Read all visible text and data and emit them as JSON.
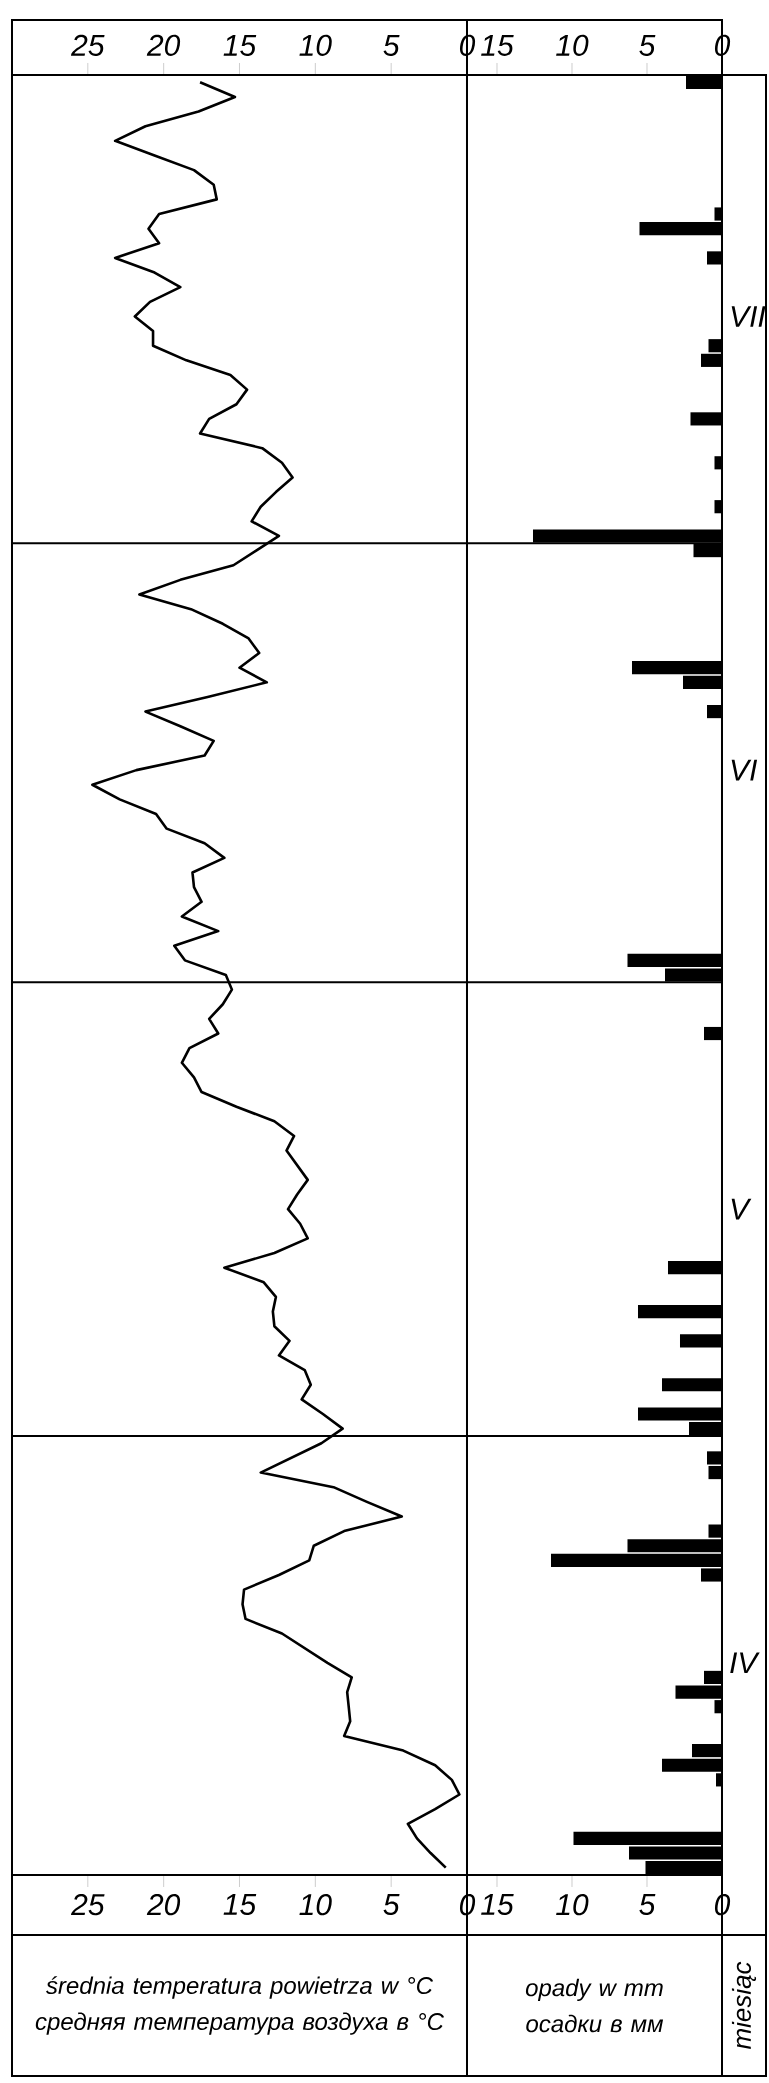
{
  "chart_data": [
    {
      "type": "line",
      "orientation": "horizontal",
      "color": "#000000",
      "categories": [
        null,
        null,
        null,
        null,
        null,
        null,
        null,
        null,
        null,
        null,
        null,
        null,
        null,
        null,
        null,
        null,
        null,
        null,
        null,
        null,
        null,
        null,
        null,
        null,
        null,
        null,
        null,
        null,
        null,
        null,
        null,
        null,
        null,
        null,
        null,
        null,
        null,
        null,
        null,
        null,
        null,
        null,
        null,
        null,
        null,
        null,
        null,
        null,
        null,
        null,
        null,
        null,
        null,
        null,
        null,
        null,
        null,
        null,
        null,
        null,
        null,
        null,
        null,
        null,
        null,
        null,
        null,
        null,
        null,
        null,
        null,
        null,
        null,
        null,
        null,
        null,
        null,
        null,
        null,
        null,
        null,
        null,
        null,
        null,
        null,
        null,
        null,
        null,
        null,
        null,
        null,
        null,
        null,
        null,
        null,
        null,
        null,
        null,
        null,
        null,
        null,
        null,
        null,
        null,
        null,
        null,
        null,
        null,
        null,
        null,
        null,
        null,
        null,
        null,
        null,
        null,
        null,
        null,
        null,
        null,
        null,
        null,
        null
      ],
      "values": [
        17.6,
        15.3,
        17.7,
        21.2,
        23.2,
        20.6,
        18.0,
        16.7,
        16.5,
        20.3,
        21.0,
        20.3,
        23.2,
        20.6,
        18.9,
        20.9,
        21.9,
        20.7,
        20.7,
        18.5,
        15.6,
        14.5,
        15.2,
        17.0,
        17.6,
        13.5,
        12.2,
        11.5,
        12.6,
        13.6,
        14.2,
        12.4,
        13.9,
        15.4,
        18.9,
        21.6,
        18.2,
        16.1,
        14.4,
        13.7,
        15.0,
        13.2,
        17.1,
        21.2,
        18.9,
        16.7,
        17.3,
        21.8,
        24.7,
        22.9,
        20.5,
        19.8,
        17.3,
        16.0,
        18.1,
        18.0,
        17.5,
        18.8,
        16.4,
        19.3,
        18.6,
        15.9,
        15.5,
        16.1,
        17.0,
        16.4,
        18.3,
        18.8,
        18.0,
        17.5,
        15.2,
        12.7,
        11.4,
        11.9,
        11.2,
        10.5,
        11.2,
        11.8,
        11.0,
        10.5,
        12.7,
        16.0,
        13.4,
        12.6,
        12.8,
        12.7,
        11.7,
        12.4,
        10.7,
        10.3,
        10.9,
        9.5,
        8.2,
        9.6,
        11.6,
        13.6,
        8.8,
        6.6,
        4.3,
        8.1,
        10.1,
        10.4,
        12.4,
        14.7,
        14.8,
        14.6,
        12.2,
        10.7,
        9.2,
        7.6,
        7.9,
        7.8,
        7.7,
        8.1,
        4.2,
        2.1,
        1.0,
        0.5,
        2.1,
        3.9,
        3.3,
        2.4,
        1.4
      ],
      "xlim": [
        30,
        0
      ],
      "xticks": [
        25,
        20,
        15,
        10,
        5,
        0
      ],
      "x2lim": [
        30,
        0
      ],
      "x2ticks": [
        25,
        20,
        15,
        10,
        5,
        0
      ],
      "xlabel": "średnia temperatura powietrza w °C",
      "x2label": "средняя температура воздуха в °C",
      "tick_labels": "x"
    },
    {
      "type": "bar",
      "orientation": "horizontal",
      "color": "#000000",
      "categories": [
        null,
        null,
        null,
        null,
        null,
        null,
        null,
        null,
        null,
        null,
        null,
        null,
        null,
        null,
        null,
        null,
        "VII",
        null,
        null,
        null,
        null,
        null,
        null,
        null,
        null,
        null,
        null,
        null,
        null,
        null,
        null,
        null,
        null,
        null,
        null,
        null,
        null,
        null,
        null,
        null,
        null,
        null,
        null,
        null,
        null,
        null,
        null,
        "VI",
        null,
        null,
        null,
        null,
        null,
        null,
        null,
        null,
        null,
        null,
        null,
        null,
        null,
        null,
        null,
        null,
        null,
        null,
        null,
        null,
        null,
        null,
        null,
        null,
        null,
        null,
        null,
        null,
        null,
        "V",
        null,
        null,
        null,
        null,
        null,
        null,
        null,
        null,
        null,
        null,
        null,
        null,
        null,
        null,
        null,
        null,
        null,
        null,
        null,
        null,
        null,
        null,
        null,
        null,
        null,
        null,
        null,
        null,
        null,
        null,
        "IV",
        null,
        null,
        null,
        null,
        null,
        null,
        null,
        null,
        null,
        null,
        null,
        null,
        null,
        null
      ],
      "values": [
        2.4,
        null,
        null,
        null,
        null,
        null,
        null,
        null,
        null,
        0.5,
        5.5,
        null,
        1.0,
        null,
        null,
        null,
        null,
        null,
        0.9,
        1.4,
        null,
        null,
        null,
        2.1,
        null,
        null,
        0.5,
        null,
        null,
        0.5,
        null,
        12.6,
        1.9,
        null,
        null,
        null,
        null,
        null,
        null,
        null,
        6.0,
        2.6,
        null,
        1.0,
        null,
        null,
        null,
        null,
        null,
        null,
        null,
        null,
        null,
        null,
        null,
        null,
        null,
        null,
        null,
        null,
        6.3,
        3.8,
        null,
        null,
        null,
        1.2,
        null,
        null,
        null,
        null,
        null,
        null,
        null,
        null,
        null,
        null,
        null,
        null,
        null,
        null,
        null,
        3.6,
        null,
        null,
        5.6,
        null,
        2.8,
        null,
        null,
        4.0,
        null,
        5.6,
        2.2,
        null,
        1.0,
        0.9,
        null,
        null,
        null,
        0.9,
        6.3,
        11.4,
        1.4,
        null,
        null,
        null,
        null,
        null,
        null,
        1.2,
        3.1,
        0.5,
        null,
        null,
        2.0,
        4.0,
        0.4,
        null,
        null,
        null,
        9.9,
        6.2,
        5.1
      ],
      "xlim": [
        17,
        0
      ],
      "xticks": [
        15,
        10,
        5,
        0
      ],
      "x2lim": [
        17,
        0
      ],
      "x2ticks": [
        15,
        10,
        5,
        0
      ],
      "ylabel": "miesiąc",
      "xlabel": "opady w mm",
      "x2label": "осадки в мм"
    }
  ]
}
